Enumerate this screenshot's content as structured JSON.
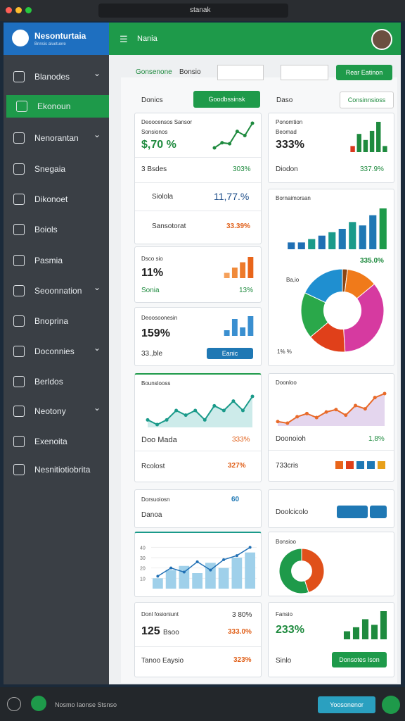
{
  "browser": {
    "url": "stanak"
  },
  "sidebar": {
    "brand": "Nesonturtaia",
    "brand_sub": "Bnnsis aluetuere",
    "items": [
      "Blanodes",
      "Ekonoun",
      "Nenorantan",
      "Snegaia",
      "Dikonoet",
      "Boiols",
      "Pasmia",
      "Seoonnation",
      "Bnoprina",
      "Doconnies",
      "Berldos",
      "Neotony",
      "Exenoita",
      "Nesnitiotiobrita"
    ]
  },
  "header": {
    "title": "Nania"
  },
  "toolbar": {
    "tabs": [
      "Gonsenone",
      "Bonsio"
    ],
    "button": "Rear Eatinon"
  },
  "left_tab": {
    "title": "Donics",
    "button": "Goodbssinsk"
  },
  "right_tab": {
    "title": "Daso",
    "button": "Consinnsioss"
  },
  "card_l1": {
    "title": "Deoocensos Sansor",
    "subtitle": "Sonsionos",
    "value": "$,70 %",
    "rows": [
      [
        "3 Bsdes",
        "303%"
      ],
      [
        "Siolola",
        "11,77.%"
      ],
      [
        "Sansotorat",
        "33.39%"
      ]
    ]
  },
  "card_r1": {
    "title": "Ponomtion",
    "subtitle": "Beomad",
    "value": "333%",
    "footer": [
      "Diodon",
      "337.9%"
    ]
  },
  "card_r2": {
    "title": "Bornaimorsan",
    "value": "335.0%",
    "labels": [
      "Ba,io",
      "1% %"
    ]
  },
  "card_l2": {
    "title": "Dsco sio",
    "value": "11%",
    "footer": [
      "Sonia",
      "13%"
    ]
  },
  "card_l3": {
    "title": "Deoosoonesin",
    "value": "159%",
    "footer": "33.,ble",
    "button": "Eanic"
  },
  "card_l4": {
    "title": "Bounslooss",
    "rows": [
      [
        "Doo Mada",
        "333%"
      ],
      [
        "Rcolost",
        "327%"
      ]
    ]
  },
  "card_r3": {
    "title": "Doonloo",
    "rows": [
      [
        "Doonoioh",
        "1,8%"
      ],
      [
        "733cris",
        ""
      ]
    ]
  },
  "card_l5": {
    "title": "Dorsuoiosn",
    "subtitle": "Danoa",
    "value": "60"
  },
  "card_r4": {
    "title": "Doolcicolo"
  },
  "card_r5": {
    "title": "Bonsioo"
  },
  "card_l7": {
    "title": "Donl fosioniunt",
    "top_value": "3 80%",
    "value": "125",
    "unit": "Bsoo",
    "value2": "333.0%",
    "footer": [
      "Tanoo Eaysio",
      "323%"
    ]
  },
  "card_r6": {
    "title": "Fansio",
    "value": "233%",
    "footer": "Sinlo",
    "button": "Donsotes Ison"
  },
  "footer": {
    "text": "Nosmo Iaonse Stsnso",
    "button": "Yoosonenor"
  },
  "charts": {
    "l1": {
      "type": "line",
      "color": "#1e8a3e",
      "values": [
        1,
        1.5,
        1.4,
        2.6,
        2.2,
        3.4
      ]
    },
    "r1": {
      "type": "bar",
      "colors": [
        "#d9381e",
        "#1e8a3e",
        "#1e8a3e",
        "#1e8a3e",
        "#1e8a3e",
        "#1e8a3e"
      ],
      "values": [
        1,
        3,
        2,
        3.5,
        5,
        1
      ]
    },
    "r2": {
      "type": "bar",
      "colors": [
        "#1f6fb4",
        "#1f6fb4",
        "#1a9a8a",
        "#1f6fb4",
        "#1a9a8a",
        "#1f78b4",
        "#1a9a8a",
        "#1f78b4",
        "#1f78b4",
        "#1e9a4a"
      ],
      "values": [
        1,
        1,
        1.5,
        2,
        2.5,
        3,
        4,
        3.5,
        5,
        6
      ]
    },
    "r2d": {
      "type": "donut",
      "colors": [
        "#8b4513",
        "#f07a1a",
        "#d63aa0",
        "#e0401a",
        "#2aa84a",
        "#1f8fd0"
      ],
      "values": [
        2,
        12,
        35,
        15,
        18,
        18
      ]
    },
    "l2": {
      "type": "bar",
      "colors": [
        "#f5a05a",
        "#f08a3a",
        "#ee7a2a",
        "#e8651a"
      ],
      "values": [
        1,
        2,
        3,
        4
      ]
    },
    "l3": {
      "type": "bar",
      "colors": [
        "#3a8fd0",
        "#3a8fd0",
        "#3a8fd0",
        "#3a8fd0"
      ],
      "values": [
        1,
        3,
        1.5,
        3.5
      ]
    },
    "l4": {
      "type": "line",
      "color": "#1a9a8a",
      "area": "#cdebea",
      "values": [
        3,
        2.5,
        3,
        4,
        3.5,
        4,
        3,
        4.5,
        4,
        5,
        4,
        5.5
      ]
    },
    "r3": {
      "type": "line",
      "color": "#e86a2a",
      "area": "#e4d6ee",
      "values": [
        2,
        1.8,
        2.6,
        3,
        2.5,
        3.2,
        3.5,
        2.8,
        4,
        3.6,
        5,
        5.5
      ]
    },
    "l6": {
      "type": "barline",
      "color": "#9fd0ea",
      "line_color": "#1f6fb4",
      "ylim": [
        0,
        45
      ],
      "yticks": [
        10,
        20,
        30,
        40
      ],
      "values": [
        10,
        18,
        22,
        15,
        25,
        20,
        30,
        35
      ],
      "line": [
        12,
        20,
        16,
        26,
        18,
        28,
        32,
        40
      ]
    },
    "r5": {
      "type": "donut",
      "colors": [
        "#e0501a",
        "#1e9a4a"
      ],
      "values": [
        45,
        55
      ]
    },
    "r6": {
      "type": "bar",
      "colors": [
        "#1e8a3e",
        "#1e8a3e",
        "#1e8a3e",
        "#1e8a3e",
        "#1e8a3e"
      ],
      "values": [
        1,
        1.5,
        2.5,
        1.8,
        3.5
      ]
    },
    "sq": {
      "type": "squares",
      "colors": [
        "#e8651a",
        "#e0401a",
        "#1f78b4",
        "#1f78b4",
        "#e8a01a"
      ],
      "values": [
        1,
        1,
        1,
        1,
        1
      ]
    }
  }
}
